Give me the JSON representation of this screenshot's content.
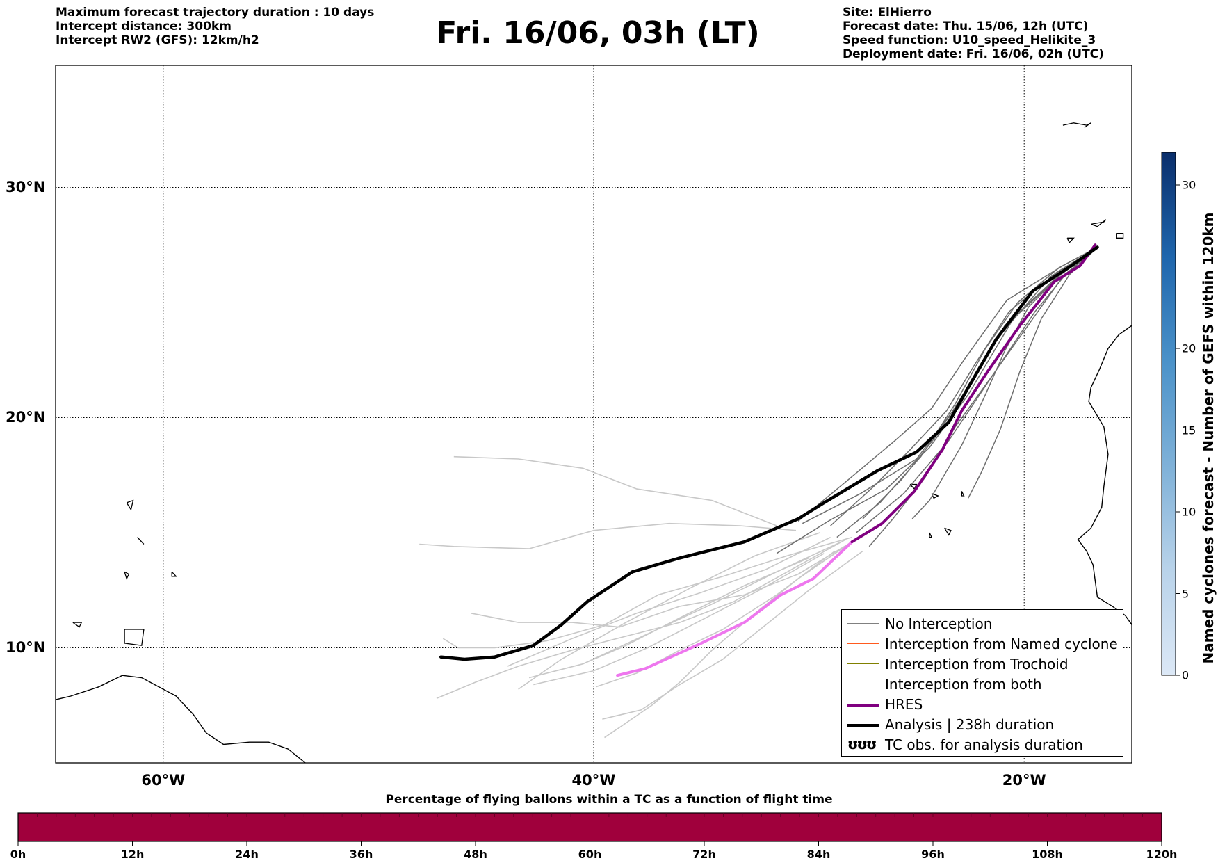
{
  "header": {
    "left_lines": [
      "Maximum forecast trajectory duration : 10 days",
      "Intercept distance: 300km",
      "Intercept RW2 (GFS):  12km/h2"
    ],
    "title": "Fri. 16/06, 03h (LT)",
    "right_lines": [
      "Site: ElHierro",
      "Forecast date: Thu. 15/06, 12h (UTC)",
      "Speed function: U10_speed_Helikite_3",
      "Deployment date: Fri. 16/06, 02h (UTC)"
    ]
  },
  "map": {
    "x_ticks": [
      {
        "lon": -60,
        "label": "60°W"
      },
      {
        "lon": -40,
        "label": "40°W"
      },
      {
        "lon": -20,
        "label": "20°W"
      }
    ],
    "y_ticks": [
      {
        "lat": 30,
        "label": "30°N"
      },
      {
        "lat": 20,
        "label": "20°N"
      },
      {
        "lat": 10,
        "label": "10°N"
      }
    ],
    "lon_range": [
      -65,
      -15
    ],
    "lat_range": [
      5,
      35.3
    ],
    "grid": "dotted"
  },
  "legend": {
    "items": [
      {
        "label": "No Interception",
        "color": "#808080",
        "style": "thin"
      },
      {
        "label": "Interception from Named cyclone",
        "color": "#ff5a1e",
        "style": "thin"
      },
      {
        "label": "Interception from Trochoid",
        "color": "#808000",
        "style": "thin"
      },
      {
        "label": "Interception from both",
        "color": "#1a7a1a",
        "style": "thin"
      },
      {
        "label": "HRES",
        "color": "#800080",
        "style": "thick"
      },
      {
        "label": "Analysis | 238h duration",
        "color": "#000000",
        "style": "thick"
      },
      {
        "label": "TC obs. for analysis duration",
        "color": "#000000",
        "style": "symbol",
        "symbol": "ʊʊʊ"
      }
    ]
  },
  "right_colorbar": {
    "label": "Named cyclones forecast - Number of GEFS within 120km",
    "range": [
      0,
      32
    ],
    "ticks": [
      "0",
      "5",
      "10",
      "15",
      "20",
      "30"
    ]
  },
  "bottom_colorbar": {
    "title": "Percentage of flying ballons within a TC as a function of flight time",
    "color": "#a0003c",
    "ticks": [
      "0h",
      "12h",
      "24h",
      "36h",
      "48h",
      "60h",
      "72h",
      "84h",
      "96h",
      "108h",
      "120h"
    ]
  },
  "trajectories": {
    "analysis": [
      [
        -16.6,
        27.4
      ],
      [
        -17.8,
        26.6
      ],
      [
        -19.6,
        25.5
      ],
      [
        -21.3,
        23.4
      ],
      [
        -22.6,
        21.3
      ],
      [
        -23.5,
        19.8
      ],
      [
        -25.0,
        18.5
      ],
      [
        -26.8,
        17.7
      ],
      [
        -29.3,
        16.3
      ],
      [
        -30.5,
        15.6
      ],
      [
        -33.0,
        14.6
      ],
      [
        -36.0,
        13.9
      ],
      [
        -38.2,
        13.3
      ],
      [
        -40.3,
        12.0
      ],
      [
        -41.5,
        11.0
      ],
      [
        -42.8,
        10.1
      ],
      [
        -44.6,
        9.6
      ],
      [
        -46.0,
        9.5
      ],
      [
        -47.1,
        9.6
      ]
    ],
    "hres_dark": [
      [
        -16.7,
        27.5
      ],
      [
        -17.4,
        26.6
      ],
      [
        -18.6,
        25.9
      ],
      [
        -20.2,
        24.0
      ],
      [
        -21.7,
        22.0
      ],
      [
        -22.9,
        20.3
      ],
      [
        -23.8,
        18.6
      ],
      [
        -25.1,
        16.8
      ],
      [
        -26.6,
        15.4
      ],
      [
        -28.0,
        14.6
      ]
    ],
    "hres_light": [
      [
        -28.0,
        14.6
      ],
      [
        -29.8,
        13.0
      ],
      [
        -31.3,
        12.3
      ],
      [
        -33.0,
        11.1
      ],
      [
        -35.0,
        10.2
      ],
      [
        -37.6,
        9.1
      ],
      [
        -38.9,
        8.8
      ]
    ],
    "ensemble_dark": [
      [
        [
          -16.6,
          27.4
        ],
        [
          -18.3,
          26.2
        ],
        [
          -20.5,
          24.3
        ],
        [
          -22.6,
          21.0
        ],
        [
          -24.4,
          18.7
        ],
        [
          -26.4,
          16.9
        ],
        [
          -29.1,
          15.5
        ],
        [
          -31.5,
          14.1
        ]
      ],
      [
        [
          -16.6,
          27.4
        ],
        [
          -18.6,
          26.0
        ],
        [
          -20.9,
          24.0
        ],
        [
          -22.9,
          20.8
        ],
        [
          -25.0,
          18.2
        ],
        [
          -27.6,
          16.7
        ],
        [
          -30.3,
          15.4
        ]
      ],
      [
        [
          -16.6,
          27.4
        ],
        [
          -18.0,
          26.3
        ],
        [
          -19.5,
          24.6
        ],
        [
          -21.2,
          22.2
        ],
        [
          -23.5,
          19.0
        ],
        [
          -25.6,
          16.7
        ],
        [
          -27.8,
          15.0
        ]
      ],
      [
        [
          -16.6,
          27.4
        ],
        [
          -18.1,
          26.4
        ],
        [
          -19.8,
          24.8
        ],
        [
          -20.9,
          22.9
        ],
        [
          -21.8,
          21.0
        ],
        [
          -22.9,
          18.8
        ],
        [
          -24.4,
          16.4
        ],
        [
          -25.2,
          15.6
        ]
      ],
      [
        [
          -16.6,
          27.4
        ],
        [
          -18.4,
          26.5
        ],
        [
          -20.3,
          25.0
        ],
        [
          -21.8,
          23.0
        ],
        [
          -23.2,
          20.6
        ],
        [
          -24.8,
          18.3
        ],
        [
          -26.7,
          16.3
        ],
        [
          -28.7,
          14.8
        ]
      ],
      [
        [
          -16.6,
          27.4
        ],
        [
          -18.8,
          26.1
        ],
        [
          -21.1,
          23.6
        ],
        [
          -22.5,
          21.5
        ],
        [
          -24.0,
          19.3
        ],
        [
          -25.7,
          17.3
        ],
        [
          -27.5,
          15.6
        ]
      ],
      [
        [
          -16.6,
          27.4
        ],
        [
          -17.9,
          26.2
        ],
        [
          -19.2,
          24.3
        ],
        [
          -20.2,
          22.0
        ],
        [
          -21.1,
          19.5
        ],
        [
          -22.0,
          17.6
        ],
        [
          -22.6,
          16.5
        ]
      ],
      [
        [
          -16.6,
          27.4
        ],
        [
          -18.2,
          26.6
        ],
        [
          -20.8,
          25.1
        ],
        [
          -22.8,
          22.5
        ],
        [
          -24.3,
          20.4
        ],
        [
          -26.0,
          19.0
        ],
        [
          -28.3,
          17.2
        ],
        [
          -30.5,
          15.5
        ]
      ],
      [
        [
          -16.6,
          27.4
        ],
        [
          -18.3,
          26.0
        ],
        [
          -19.9,
          23.9
        ],
        [
          -21.5,
          21.8
        ],
        [
          -23.2,
          19.6
        ],
        [
          -24.6,
          17.4
        ],
        [
          -26.1,
          15.6
        ],
        [
          -27.2,
          14.4
        ]
      ],
      [
        [
          -16.6,
          27.4
        ],
        [
          -18.5,
          26.3
        ],
        [
          -20.7,
          24.6
        ],
        [
          -22.3,
          22.3
        ],
        [
          -23.6,
          20.3
        ],
        [
          -25.3,
          18.6
        ],
        [
          -27.0,
          17.0
        ],
        [
          -29.0,
          15.3
        ]
      ]
    ],
    "ensemble_light": [
      [
        [
          -30.6,
          15.1
        ],
        [
          -33.2,
          15.3
        ],
        [
          -36.5,
          15.4
        ],
        [
          -40.0,
          15.1
        ],
        [
          -43.0,
          14.3
        ],
        [
          -46.5,
          14.4
        ],
        [
          -48.1,
          14.5
        ]
      ],
      [
        [
          -31.5,
          15.3
        ],
        [
          -34.5,
          16.4
        ],
        [
          -38.0,
          16.9
        ],
        [
          -40.5,
          17.8
        ],
        [
          -43.5,
          18.2
        ],
        [
          -46.5,
          18.3
        ]
      ],
      [
        [
          -28.0,
          14.8
        ],
        [
          -31.0,
          14.0
        ],
        [
          -34.0,
          13.1
        ],
        [
          -37.0,
          12.3
        ],
        [
          -39.5,
          11.0
        ],
        [
          -42.2,
          10.3
        ],
        [
          -44.6,
          10.0
        ],
        [
          -46.3,
          10.0
        ],
        [
          -47.0,
          10.4
        ]
      ],
      [
        [
          -28.0,
          14.6
        ],
        [
          -30.5,
          13.2
        ],
        [
          -33.0,
          12.3
        ],
        [
          -36.0,
          11.8
        ],
        [
          -38.8,
          10.9
        ],
        [
          -41.0,
          11.1
        ],
        [
          -43.5,
          11.1
        ],
        [
          -45.7,
          11.5
        ]
      ],
      [
        [
          -28.3,
          14.7
        ],
        [
          -31.0,
          13.3
        ],
        [
          -33.5,
          12.0
        ],
        [
          -36.0,
          11.1
        ],
        [
          -38.5,
          10.5
        ],
        [
          -41.0,
          9.9
        ],
        [
          -43.5,
          9.2
        ],
        [
          -45.5,
          8.5
        ],
        [
          -47.3,
          7.8
        ]
      ],
      [
        [
          -28.0,
          14.6
        ],
        [
          -30.5,
          13.0
        ],
        [
          -32.5,
          11.5
        ],
        [
          -34.5,
          9.9
        ],
        [
          -36.0,
          8.5
        ],
        [
          -37.3,
          7.5
        ],
        [
          -38.7,
          6.6
        ],
        [
          -39.5,
          6.1
        ]
      ],
      [
        [
          -27.5,
          14.2
        ],
        [
          -30.0,
          12.5
        ],
        [
          -32.0,
          11.0
        ],
        [
          -34.0,
          9.5
        ],
        [
          -36.0,
          8.4
        ],
        [
          -37.8,
          7.3
        ],
        [
          -39.6,
          6.9
        ]
      ],
      [
        [
          -28.5,
          14.6
        ],
        [
          -31.5,
          13.3
        ],
        [
          -34.5,
          11.9
        ],
        [
          -37.5,
          10.6
        ],
        [
          -40.5,
          9.3
        ],
        [
          -43.0,
          8.7
        ]
      ],
      [
        [
          -29.5,
          15.0
        ],
        [
          -32.5,
          14.0
        ],
        [
          -35.5,
          12.6
        ],
        [
          -38.5,
          11.1
        ],
        [
          -41.5,
          9.5
        ],
        [
          -43.5,
          8.2
        ]
      ],
      [
        [
          -29.0,
          14.8
        ],
        [
          -32.0,
          13.4
        ],
        [
          -35.0,
          12.4
        ],
        [
          -38.0,
          11.5
        ],
        [
          -41.0,
          10.4
        ],
        [
          -44.0,
          9.2
        ]
      ],
      [
        [
          -28.8,
          14.2
        ],
        [
          -31.5,
          12.3
        ],
        [
          -34.0,
          10.8
        ],
        [
          -36.0,
          9.9
        ],
        [
          -38.0,
          8.9
        ],
        [
          -39.9,
          8.3
        ]
      ],
      [
        [
          -30.0,
          13.9
        ],
        [
          -33.0,
          12.7
        ],
        [
          -36.0,
          11.3
        ],
        [
          -38.5,
          10.1
        ],
        [
          -40.5,
          9.3
        ]
      ],
      [
        [
          -29.3,
          14.1
        ],
        [
          -32.3,
          12.5
        ],
        [
          -35.0,
          11.2
        ],
        [
          -37.5,
          10.0
        ],
        [
          -40.0,
          9.0
        ],
        [
          -42.8,
          8.4
        ]
      ]
    ]
  },
  "coastlines": {
    "caribbean": [
      [
        -65.2,
        7.7
      ],
      [
        -64.3,
        7.9
      ],
      [
        -63.0,
        8.3
      ],
      [
        -61.9,
        8.8
      ],
      [
        -61.0,
        8.7
      ],
      [
        -60.4,
        8.4
      ],
      [
        -59.4,
        7.9
      ],
      [
        -58.6,
        7.1
      ],
      [
        -58.0,
        6.3
      ],
      [
        -57.2,
        5.8
      ],
      [
        -56.0,
        5.9
      ],
      [
        -55.1,
        5.9
      ],
      [
        -54.2,
        5.6
      ],
      [
        -53.4,
        5.0
      ],
      [
        -52.6,
        4.6
      ]
    ],
    "africa": [
      [
        -15.0,
        24.0
      ],
      [
        -15.6,
        23.6
      ],
      [
        -16.1,
        23.0
      ],
      [
        -16.5,
        22.1
      ],
      [
        -16.9,
        21.3
      ],
      [
        -17.0,
        20.7
      ],
      [
        -16.3,
        19.6
      ],
      [
        -16.1,
        18.4
      ],
      [
        -16.3,
        17.0
      ],
      [
        -16.4,
        16.1
      ],
      [
        -16.9,
        15.2
      ],
      [
        -17.5,
        14.7
      ],
      [
        -17.1,
        14.2
      ],
      [
        -16.8,
        13.6
      ],
      [
        -16.7,
        12.9
      ],
      [
        -16.6,
        12.2
      ],
      [
        -15.9,
        11.8
      ],
      [
        -15.3,
        11.4
      ],
      [
        -15.0,
        11.0
      ]
    ],
    "islands": [
      [
        [
          -18.0,
          27.8
        ],
        [
          -17.9,
          27.6
        ],
        [
          -17.7,
          27.8
        ],
        [
          -18.0,
          27.8
        ]
      ],
      [
        [
          -16.9,
          28.4
        ],
        [
          -16.3,
          28.5
        ],
        [
          -16.2,
          28.6
        ],
        [
          -16.6,
          28.3
        ],
        [
          -16.9,
          28.4
        ]
      ],
      [
        [
          -15.7,
          28.0
        ],
        [
          -15.4,
          28.0
        ],
        [
          -15.4,
          27.8
        ],
        [
          -15.7,
          27.8
        ],
        [
          -15.7,
          28.0
        ]
      ],
      [
        [
          -14.4,
          28.7
        ],
        [
          -13.9,
          28.6
        ],
        [
          -14.0,
          28.3
        ],
        [
          -14.4,
          28.7
        ]
      ],
      [
        [
          -25.3,
          17.1
        ],
        [
          -25.0,
          17.1
        ],
        [
          -25.1,
          16.9
        ],
        [
          -25.3,
          17.1
        ]
      ],
      [
        [
          -24.3,
          16.7
        ],
        [
          -24.0,
          16.6
        ],
        [
          -24.2,
          16.5
        ],
        [
          -24.3,
          16.7
        ]
      ],
      [
        [
          -22.9,
          16.8
        ],
        [
          -22.8,
          16.6
        ],
        [
          -22.9,
          16.6
        ],
        [
          -22.9,
          16.8
        ]
      ],
      [
        [
          -23.7,
          15.2
        ],
        [
          -23.4,
          15.1
        ],
        [
          -23.5,
          14.9
        ],
        [
          -23.7,
          15.2
        ]
      ],
      [
        [
          -24.4,
          15.0
        ],
        [
          -24.3,
          14.8
        ],
        [
          -24.4,
          14.8
        ],
        [
          -24.4,
          15.0
        ]
      ],
      [
        [
          -61.8,
          13.3
        ],
        [
          -61.6,
          13.2
        ],
        [
          -61.7,
          13.0
        ],
        [
          -61.8,
          13.3
        ]
      ],
      [
        [
          -61.2,
          14.8
        ],
        [
          -61.0,
          14.6
        ],
        [
          -60.9,
          14.5
        ],
        [
          -61.2,
          14.8
        ]
      ],
      [
        [
          -61.7,
          16.3
        ],
        [
          -61.4,
          16.4
        ],
        [
          -61.5,
          16.0
        ],
        [
          -61.7,
          16.3
        ]
      ],
      [
        [
          -59.6,
          13.3
        ],
        [
          -59.4,
          13.1
        ],
        [
          -59.6,
          13.1
        ],
        [
          -59.6,
          13.3
        ]
      ],
      [
        [
          -61.8,
          10.8
        ],
        [
          -60.9,
          10.8
        ],
        [
          -61.0,
          10.1
        ],
        [
          -61.8,
          10.2
        ],
        [
          -61.8,
          10.8
        ]
      ],
      [
        [
          -64.2,
          11.1
        ],
        [
          -63.8,
          11.1
        ],
        [
          -63.9,
          10.9
        ],
        [
          -64.2,
          11.1
        ]
      ],
      [
        [
          -18.2,
          32.7
        ],
        [
          -17.7,
          32.8
        ],
        [
          -17.1,
          32.7
        ],
        [
          -16.9,
          32.8
        ],
        [
          -17.2,
          32.6
        ]
      ]
    ]
  }
}
